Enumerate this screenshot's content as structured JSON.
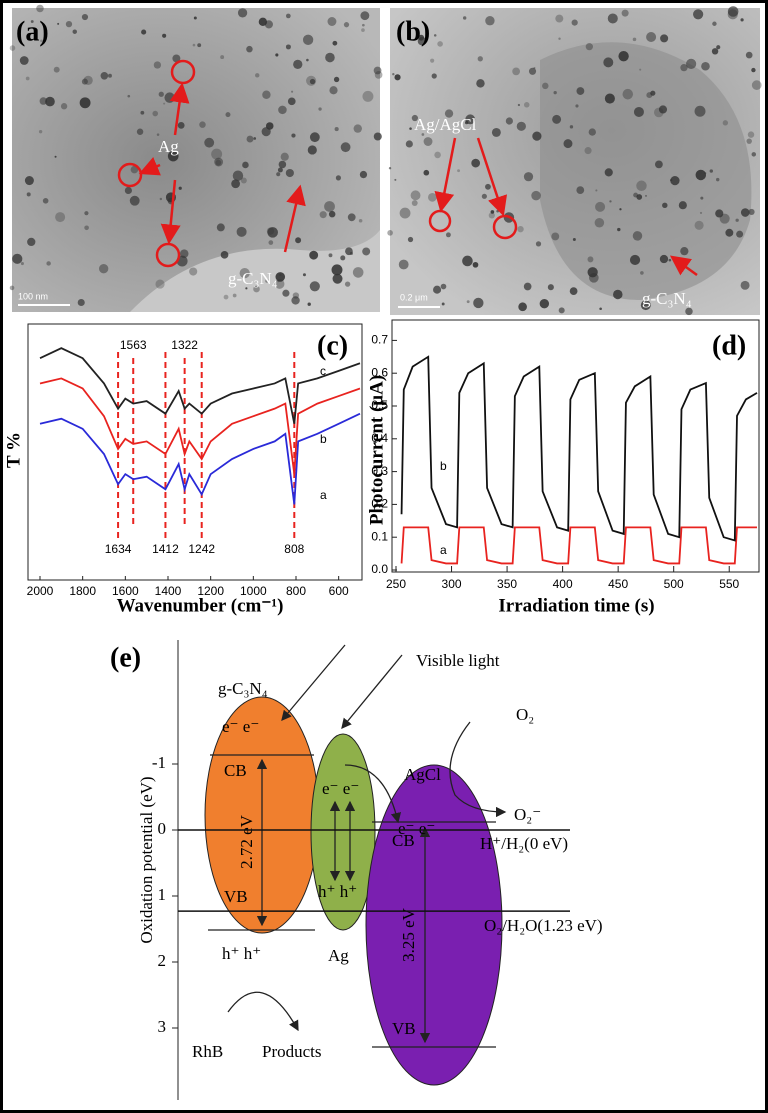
{
  "panels": {
    "a": {
      "label": "(a)",
      "annotations": [
        "Ag",
        "g-C₃N₄"
      ],
      "scale_bar": "100 nm"
    },
    "b": {
      "label": "(b)",
      "annotations": [
        "Ag/AgCl",
        "g-C₃N₄"
      ],
      "scale_bar": "0.2 μm"
    },
    "e": {
      "label": "(e)",
      "axis_label": "Oxidation potential (eV)",
      "ticks": [
        -1,
        0,
        1,
        2,
        3
      ],
      "levels": [
        {
          "value": 0,
          "label": "H⁺/H₂(0 eV)"
        },
        {
          "value": 1.23,
          "label": "O₂/H₂O(1.23 eV)"
        }
      ],
      "texts": {
        "gcn": "g-C₃N₄",
        "light": "Visible light",
        "agcl": "AgCl",
        "ag": "Ag",
        "o2": "O₂",
        "o2r": "O₂⁻",
        "cb1": "CB",
        "vb1": "VB",
        "cb2": "CB",
        "vb2": "VB",
        "e1": "e⁻ e⁻",
        "h1": "h⁺  h⁺",
        "e2": "e⁻  e⁻",
        "h2": "h⁺  h⁺",
        "e3": "e⁻    e⁻",
        "gap1": "2.72 eV",
        "gap2": "3.25 eV",
        "rhb": "RhB",
        "products": "Products"
      }
    }
  },
  "chart_data": [
    {
      "type": "line",
      "panel_label": "(c)",
      "xlabel": "Wavenumber (cm⁻¹)",
      "ylabel": "T %",
      "x": [
        2000,
        1900,
        1800,
        1700,
        1634,
        1600,
        1563,
        1500,
        1412,
        1350,
        1322,
        1300,
        1242,
        1200,
        1100,
        1000,
        900,
        850,
        808,
        790,
        700,
        600,
        500
      ],
      "xlim": [
        2000,
        500
      ],
      "xticks": [
        2000,
        1800,
        1600,
        1400,
        1200,
        1000,
        800,
        600
      ],
      "ylim": [
        0,
        100
      ],
      "series": [
        {
          "name": "a",
          "color": "#2a2ad8",
          "values": [
            62,
            64,
            60,
            50,
            38,
            42,
            40,
            41,
            36,
            46,
            36,
            42,
            34,
            42,
            48,
            52,
            55,
            58,
            30,
            55,
            58,
            62,
            66
          ]
        },
        {
          "name": "b",
          "color": "#e8231f",
          "values": [
            78,
            80,
            76,
            65,
            52,
            56,
            54,
            55,
            50,
            60,
            50,
            55,
            48,
            55,
            62,
            65,
            68,
            70,
            42,
            66,
            70,
            73,
            76
          ]
        },
        {
          "name": "c",
          "color": "#222222",
          "values": [
            88,
            92,
            88,
            78,
            68,
            72,
            70,
            71,
            66,
            75,
            68,
            70,
            66,
            70,
            74,
            76,
            78,
            80,
            62,
            78,
            80,
            83,
            86
          ]
        }
      ],
      "markers_top": [
        1563,
        1322
      ],
      "markers_bottom": [
        1634,
        1412,
        1242,
        808
      ]
    },
    {
      "type": "line",
      "panel_label": "(d)",
      "xlabel": "Irradiation time (s)",
      "ylabel": "Photocurrent (μA)",
      "x": [
        255,
        257,
        265,
        279,
        282,
        295,
        305,
        307,
        315,
        329,
        332,
        345,
        355,
        357,
        365,
        379,
        382,
        395,
        405,
        407,
        415,
        429,
        432,
        445,
        455,
        457,
        465,
        479,
        482,
        495,
        505,
        507,
        515,
        529,
        532,
        545,
        555,
        557,
        565,
        575
      ],
      "xlim": [
        250,
        575
      ],
      "xticks": [
        250,
        300,
        350,
        400,
        450,
        500,
        550
      ],
      "ylim": [
        0,
        0.75
      ],
      "yticks": [
        {
          "value": 0,
          "label": "0.0"
        },
        0.1,
        0.2,
        0.3,
        0.4,
        0.5,
        0.6,
        0.7
      ],
      "series": [
        {
          "name": "a",
          "color": "#e8231f",
          "values": [
            0.02,
            0.13,
            0.13,
            0.13,
            0.03,
            0.02,
            0.02,
            0.13,
            0.13,
            0.13,
            0.03,
            0.02,
            0.02,
            0.13,
            0.13,
            0.13,
            0.03,
            0.02,
            0.02,
            0.13,
            0.13,
            0.13,
            0.03,
            0.02,
            0.02,
            0.13,
            0.13,
            0.13,
            0.03,
            0.02,
            0.02,
            0.13,
            0.13,
            0.13,
            0.03,
            0.02,
            0.02,
            0.13,
            0.13,
            0.13
          ]
        },
        {
          "name": "b",
          "color": "#111111",
          "values": [
            0.17,
            0.55,
            0.62,
            0.65,
            0.25,
            0.14,
            0.13,
            0.54,
            0.6,
            0.63,
            0.25,
            0.14,
            0.13,
            0.53,
            0.59,
            0.62,
            0.24,
            0.13,
            0.12,
            0.52,
            0.58,
            0.6,
            0.24,
            0.12,
            0.11,
            0.51,
            0.56,
            0.59,
            0.23,
            0.11,
            0.1,
            0.49,
            0.55,
            0.57,
            0.22,
            0.1,
            0.09,
            0.47,
            0.52,
            0.54
          ]
        }
      ]
    }
  ]
}
